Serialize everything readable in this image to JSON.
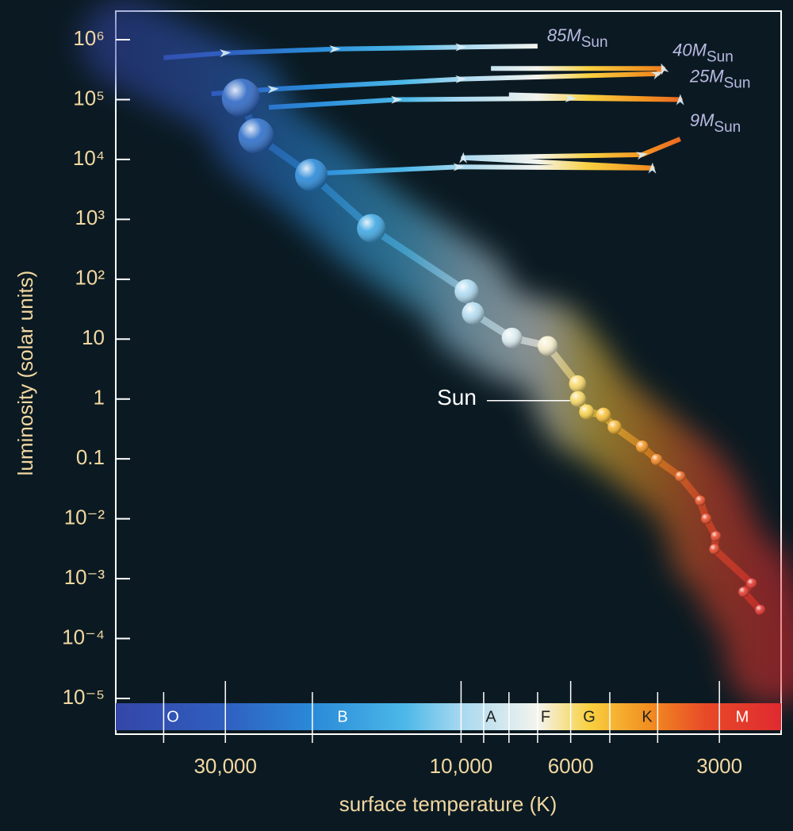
{
  "chart_data": {
    "type": "scatter",
    "x_label": "surface temperature (K)",
    "y_label": "luminosity (solar units)",
    "x_log": true,
    "y_log": true,
    "xlim": [
      50000,
      2250
    ],
    "ylim": [
      1e-05,
      3000000
    ],
    "xticks": [
      {
        "value": 30000,
        "label": "30,000"
      },
      {
        "value": 10000,
        "label": "10,000"
      },
      6000,
      3000
    ],
    "xminorticks": [
      40000,
      20000,
      9000,
      8000,
      7000,
      5000,
      4000
    ],
    "yticks": [
      {
        "value": 1000000,
        "label": "10⁶"
      },
      {
        "value": 100000,
        "label": "10⁵"
      },
      {
        "value": 10000,
        "label": "10⁴"
      },
      {
        "value": 1000,
        "label": "10³"
      },
      {
        "value": 100,
        "label": "10²"
      },
      10,
      1,
      0.1,
      {
        "value": 0.01,
        "label": "10⁻²"
      },
      {
        "value": 0.001,
        "label": "10⁻³"
      },
      {
        "value": 0.0001,
        "label": "10⁻⁴"
      },
      {
        "value": 1e-05,
        "label": "10⁻⁵"
      }
    ],
    "x": [
      27900,
      26000,
      20100,
      15200,
      9750,
      9460,
      7890,
      6680,
      5810,
      5800,
      5570,
      5150,
      4890,
      4300,
      4020,
      3600,
      3280,
      3190,
      3050,
      3070,
      2580,
      2680,
      2480
    ],
    "values": [
      107000,
      24700,
      5500,
      710,
      63,
      27,
      10.5,
      7.7,
      1.8,
      1,
      0.61,
      0.54,
      0.34,
      0.16,
      0.097,
      0.051,
      0.02,
      0.01,
      0.0051,
      0.0031,
      0.00083,
      0.0006,
      0.0003
    ],
    "annotation": "Sun",
    "tracks": [
      {
        "name": "85M",
        "x": [
          40000,
          30000,
          18000,
          10000,
          7000
        ],
        "values": [
          500000,
          600000,
          700000,
          750000,
          780000
        ]
      },
      {
        "name": "40M",
        "x": [
          32000,
          24000,
          10000,
          4000,
          3900,
          8700
        ],
        "values": [
          125000,
          150000,
          220000,
          270000,
          330000,
          330000
        ]
      },
      {
        "name": "25M",
        "x": [
          24500,
          13500,
          6000,
          3600,
          8000
        ],
        "values": [
          74000,
          100000,
          105000,
          100000,
          120000
        ]
      },
      {
        "name": "9M",
        "x": [
          20000,
          10100,
          4100,
          9900,
          4300,
          3600
        ],
        "values": [
          5800,
          7500,
          7200,
          10700,
          12000,
          22000
        ]
      }
    ],
    "track_subscript": "Sun",
    "spectral_classes": [
      "O",
      "B",
      "A",
      "F",
      "G",
      "K",
      "M"
    ]
  }
}
